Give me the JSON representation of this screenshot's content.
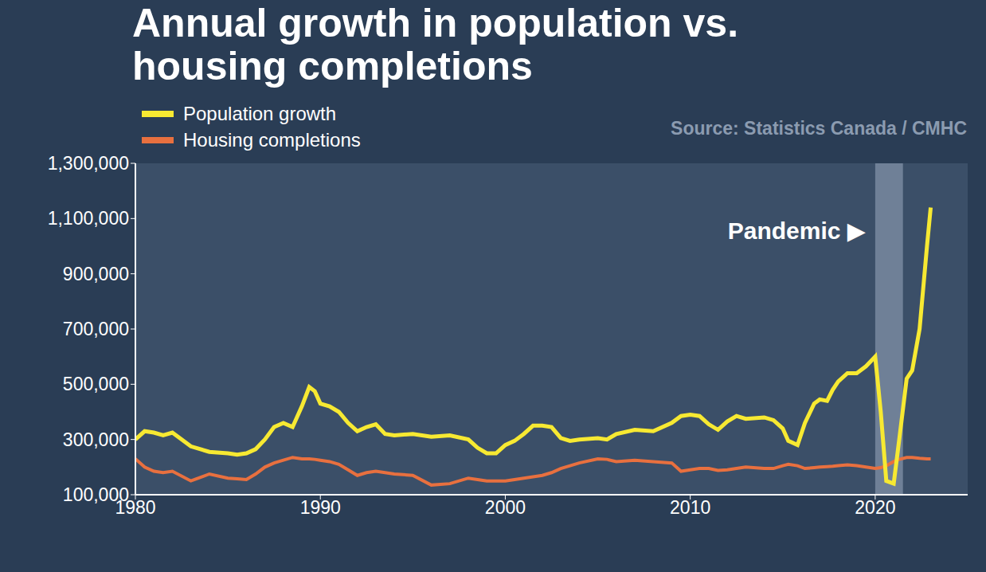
{
  "chart_data": {
    "type": "line",
    "title": "Annual growth in population vs. housing completions",
    "source": "Source: Statistics Canada / CMHC",
    "legend": "top-left",
    "grid": false,
    "x": [
      1980,
      1980.5,
      1981,
      1981.5,
      1982,
      1983,
      1984,
      1985,
      1985.5,
      1986,
      1986.5,
      1987,
      1987.5,
      1988,
      1988.5,
      1989,
      1989.4,
      1989.7,
      1990,
      1990.5,
      1991,
      1991.5,
      1992,
      1992.5,
      1993,
      1993.5,
      1994,
      1995,
      1996,
      1997,
      1998,
      1998.5,
      1999,
      1999.5,
      2000,
      2000.5,
      2001,
      2001.5,
      2002,
      2002.5,
      2003,
      2003.5,
      2004,
      2005,
      2005.5,
      2006,
      2007,
      2008,
      2009,
      2009.5,
      2010,
      2010.5,
      2011,
      2011.5,
      2012,
      2012.5,
      2013,
      2014,
      2014.5,
      2015,
      2015.3,
      2015.8,
      2016.2,
      2016.7,
      2017,
      2017.4,
      2017.7,
      2018,
      2018.5,
      2019,
      2019.5,
      2020,
      2020.3,
      2020.6,
      2021,
      2021.3,
      2021.7,
      2022,
      2022.4,
      2022.8,
      2023
    ],
    "series": [
      {
        "name": "Population growth",
        "color": "#f7e932",
        "values": [
          300000,
          330000,
          325000,
          315000,
          325000,
          275000,
          255000,
          250000,
          245000,
          250000,
          265000,
          300000,
          345000,
          360000,
          345000,
          420000,
          490000,
          475000,
          430000,
          420000,
          400000,
          360000,
          330000,
          345000,
          355000,
          320000,
          315000,
          320000,
          310000,
          315000,
          300000,
          270000,
          250000,
          250000,
          280000,
          295000,
          320000,
          350000,
          350000,
          345000,
          305000,
          295000,
          300000,
          305000,
          300000,
          320000,
          335000,
          330000,
          360000,
          385000,
          390000,
          385000,
          355000,
          335000,
          365000,
          385000,
          375000,
          380000,
          370000,
          340000,
          295000,
          280000,
          360000,
          430000,
          445000,
          440000,
          480000,
          510000,
          540000,
          540000,
          565000,
          600000,
          400000,
          150000,
          140000,
          300000,
          520000,
          550000,
          700000,
          1000000,
          1140000
        ]
      },
      {
        "name": "Housing completions",
        "color": "#e8703f",
        "values": [
          230000,
          200000,
          185000,
          180000,
          185000,
          150000,
          175000,
          160000,
          158000,
          155000,
          175000,
          200000,
          215000,
          225000,
          235000,
          230000,
          230000,
          228000,
          225000,
          220000,
          210000,
          190000,
          170000,
          180000,
          185000,
          180000,
          175000,
          170000,
          135000,
          140000,
          160000,
          155000,
          150000,
          150000,
          150000,
          155000,
          160000,
          165000,
          170000,
          180000,
          195000,
          205000,
          215000,
          230000,
          228000,
          220000,
          225000,
          220000,
          215000,
          185000,
          190000,
          195000,
          195000,
          188000,
          190000,
          195000,
          200000,
          195000,
          195000,
          205000,
          210000,
          205000,
          195000,
          198000,
          200000,
          202000,
          203000,
          205000,
          208000,
          205000,
          200000,
          195000,
          198000,
          205000,
          220000,
          228000,
          235000,
          235000,
          232000,
          230000,
          230000
        ]
      }
    ],
    "xlim": [
      1980,
      2025
    ],
    "xticks": [
      1980,
      1990,
      2000,
      2010,
      2020
    ],
    "ylim": [
      100000,
      1300000
    ],
    "yticks": [
      {
        "value": 100000,
        "label": "100,000"
      },
      {
        "value": 300000,
        "label": "300,000"
      },
      {
        "value": 500000,
        "label": "500,000"
      },
      {
        "value": 700000,
        "label": "700,000"
      },
      {
        "value": 900000,
        "label": "900,000"
      },
      {
        "value": 1100000,
        "label": "1,100,000"
      },
      {
        "value": 1300000,
        "label": "1,300,000"
      }
    ],
    "shaded_region": {
      "label": "Pandemic ▶",
      "x": [
        2020,
        2021.5
      ]
    }
  }
}
